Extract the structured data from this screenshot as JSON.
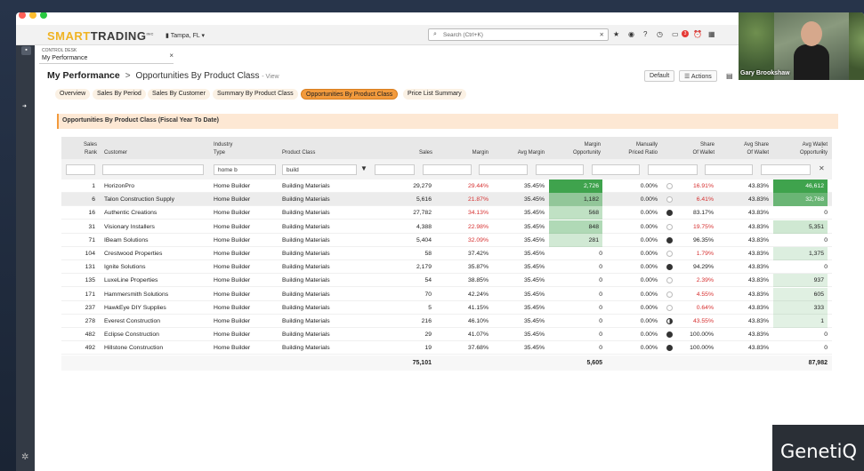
{
  "app": {
    "brand_a": "SMART",
    "brand_b": "TRADING",
    "brand_sup": "INC",
    "location": "Tampa, FL",
    "search_placeholder": "Search (Ctrl+K)",
    "notif_count": "3"
  },
  "control_tab": {
    "small_label": "CONTROL DESK",
    "label": "My Performance"
  },
  "breadcrumb": {
    "root": "My Performance",
    "sep": ">",
    "current": "Opportunities By Product Class",
    "suffix": "- View"
  },
  "page_buttons": {
    "default": "Default",
    "actions": "Actions"
  },
  "tabs": [
    "Overview",
    "Sales By Period",
    "Sales By Customer",
    "Summary By Product Class",
    "Opportunities By Product Class",
    "Price List Summary"
  ],
  "active_tab_index": 4,
  "banner_title": "Opportunities By Product Class (Fiscal Year To Date)",
  "columns": {
    "rank": [
      "Sales",
      "Rank"
    ],
    "customer": "Customer",
    "industry": [
      "Industry",
      "Type"
    ],
    "product_class": "Product Class",
    "sales": "Sales",
    "margin": "Margin",
    "avg_margin": "Avg Margin",
    "margin_opp": [
      "Margin",
      "Opportunity"
    ],
    "manual": [
      "Manually",
      "Priced Ratio"
    ],
    "share": [
      "Share",
      "Of Wallet"
    ],
    "avg_share": [
      "Avg Share",
      "Of Wallet"
    ],
    "avg_wallet": [
      "Avg Wallet",
      "Opportunity"
    ]
  },
  "filters": {
    "industry": "home b",
    "product_class": "build"
  },
  "rows": [
    {
      "rank": "1",
      "customer": "HorizonPro",
      "industry": "Home Builder",
      "pclass": "Building Materials",
      "sales": "29,279",
      "margin": "29.44%",
      "avg_margin": "35.45%",
      "margin_opp": "2,726",
      "manual": "0.00%",
      "share_ind": "empty",
      "share": "16.91%",
      "avg_share": "43.83%",
      "avg_wallet": "46,612"
    },
    {
      "rank": "6",
      "customer": "Talon Construction Supply",
      "industry": "Home Builder",
      "pclass": "Building Materials",
      "sales": "5,616",
      "margin": "21.87%",
      "avg_margin": "35.45%",
      "margin_opp": "1,182",
      "manual": "0.00%",
      "share_ind": "empty",
      "share": "6.41%",
      "avg_share": "43.83%",
      "avg_wallet": "32,768"
    },
    {
      "rank": "16",
      "customer": "Authentic Creations",
      "industry": "Home Builder",
      "pclass": "Building Materials",
      "sales": "27,782",
      "margin": "34.13%",
      "avg_margin": "35.45%",
      "margin_opp": "568",
      "manual": "0.00%",
      "share_ind": "full",
      "share": "83.17%",
      "avg_share": "43.83%",
      "avg_wallet": "0"
    },
    {
      "rank": "31",
      "customer": "Visionary Installers",
      "industry": "Home Builder",
      "pclass": "Building Materials",
      "sales": "4,388",
      "margin": "22.98%",
      "avg_margin": "35.45%",
      "margin_opp": "848",
      "manual": "0.00%",
      "share_ind": "empty",
      "share": "19.75%",
      "avg_share": "43.83%",
      "avg_wallet": "5,351"
    },
    {
      "rank": "71",
      "customer": "IBeam Solutions",
      "industry": "Home Builder",
      "pclass": "Building Materials",
      "sales": "5,404",
      "margin": "32.09%",
      "avg_margin": "35.45%",
      "margin_opp": "281",
      "manual": "0.00%",
      "share_ind": "full",
      "share": "96.35%",
      "avg_share": "43.83%",
      "avg_wallet": "0"
    },
    {
      "rank": "104",
      "customer": "Crestwood Properties",
      "industry": "Home Builder",
      "pclass": "Building Materials",
      "sales": "58",
      "margin": "37.42%",
      "avg_margin": "35.45%",
      "margin_opp": "0",
      "manual": "0.00%",
      "share_ind": "empty",
      "share": "1.79%",
      "avg_share": "43.83%",
      "avg_wallet": "1,375"
    },
    {
      "rank": "131",
      "customer": "Ignite Solutions",
      "industry": "Home Builder",
      "pclass": "Building Materials",
      "sales": "2,179",
      "margin": "35.87%",
      "avg_margin": "35.45%",
      "margin_opp": "0",
      "manual": "0.00%",
      "share_ind": "full",
      "share": "94.29%",
      "avg_share": "43.83%",
      "avg_wallet": "0"
    },
    {
      "rank": "135",
      "customer": "LuxeLine Properties",
      "industry": "Home Builder",
      "pclass": "Building Materials",
      "sales": "54",
      "margin": "38.85%",
      "avg_margin": "35.45%",
      "margin_opp": "0",
      "manual": "0.00%",
      "share_ind": "empty",
      "share": "2.39%",
      "avg_share": "43.83%",
      "avg_wallet": "937"
    },
    {
      "rank": "171",
      "customer": "Hammersmith Solutions",
      "industry": "Home Builder",
      "pclass": "Building Materials",
      "sales": "70",
      "margin": "42.24%",
      "avg_margin": "35.45%",
      "margin_opp": "0",
      "manual": "0.00%",
      "share_ind": "empty",
      "share": "4.55%",
      "avg_share": "43.83%",
      "avg_wallet": "605"
    },
    {
      "rank": "237",
      "customer": "HawkEye DIY Supplies",
      "industry": "Home Builder",
      "pclass": "Building Materials",
      "sales": "5",
      "margin": "41.15%",
      "avg_margin": "35.45%",
      "margin_opp": "0",
      "manual": "0.00%",
      "share_ind": "empty",
      "share": "0.64%",
      "avg_share": "43.83%",
      "avg_wallet": "333"
    },
    {
      "rank": "278",
      "customer": "Everest Construction",
      "industry": "Home Builder",
      "pclass": "Building Materials",
      "sales": "216",
      "margin": "46.10%",
      "avg_margin": "35.45%",
      "margin_opp": "0",
      "manual": "0.00%",
      "share_ind": "half",
      "share": "43.55%",
      "avg_share": "43.83%",
      "avg_wallet": "1"
    },
    {
      "rank": "482",
      "customer": "Eclipse Construction",
      "industry": "Home Builder",
      "pclass": "Building Materials",
      "sales": "29",
      "margin": "41.07%",
      "avg_margin": "35.45%",
      "margin_opp": "0",
      "manual": "0.00%",
      "share_ind": "full",
      "share": "100.00%",
      "avg_share": "43.83%",
      "avg_wallet": "0"
    },
    {
      "rank": "492",
      "customer": "Hillstone Construction",
      "industry": "Home Builder",
      "pclass": "Building Materials",
      "sales": "19",
      "margin": "37.68%",
      "avg_margin": "35.45%",
      "margin_opp": "0",
      "manual": "0.00%",
      "share_ind": "full",
      "share": "100.00%",
      "avg_share": "43.83%",
      "avg_wallet": "0"
    }
  ],
  "totals": {
    "sales": "75,101",
    "margin_opp": "5,605",
    "avg_wallet": "87,982"
  },
  "video": {
    "name": "Gary Brookshaw"
  },
  "watermark": "GenetiQ",
  "colors": {
    "accent_orange": "#f29a3c",
    "brand_yellow": "#f0b323",
    "negative_red": "#d62f2f",
    "opp_green_strong": "#3fa34d"
  }
}
